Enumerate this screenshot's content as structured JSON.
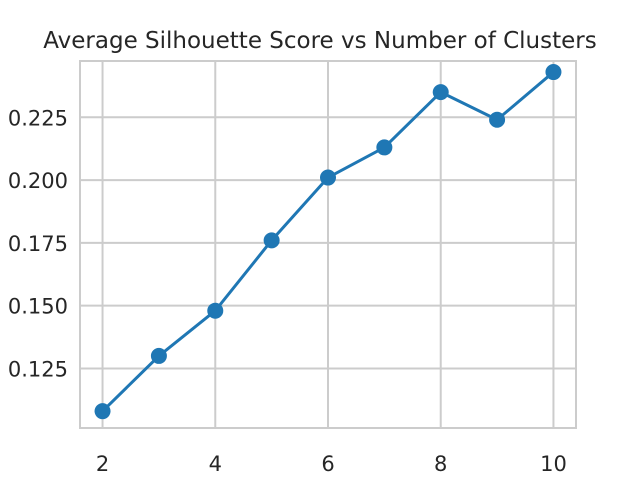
{
  "chart_data": {
    "type": "line",
    "title": "Average Silhouette Score vs Number of Clusters",
    "xlabel": "",
    "ylabel": "",
    "x": [
      2,
      3,
      4,
      5,
      6,
      7,
      8,
      9,
      10
    ],
    "series": [
      {
        "values": [
          0.108,
          0.13,
          0.148,
          0.176,
          0.201,
          0.213,
          0.235,
          0.224,
          0.243
        ]
      }
    ],
    "xticks": [
      2,
      4,
      6,
      8,
      10
    ],
    "xtick_labels": [
      "2",
      "4",
      "6",
      "8",
      "10"
    ],
    "yticks": [
      0.125,
      0.15,
      0.175,
      0.2,
      0.225
    ],
    "ytick_labels": [
      "0.125",
      "0.150",
      "0.175",
      "0.200",
      "0.225"
    ],
    "xlim": [
      1.6,
      10.4
    ],
    "ylim": [
      0.1013,
      0.2474
    ],
    "grid": true,
    "legend": "none",
    "colors": {
      "series": "#1f77b4",
      "grid": "#cccccc",
      "text": "#262626"
    }
  }
}
